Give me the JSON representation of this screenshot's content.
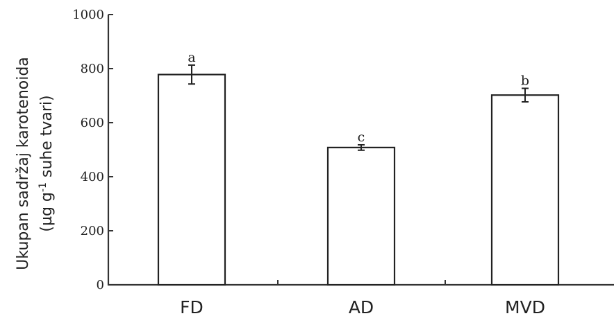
{
  "chart_data": {
    "type": "bar",
    "categories": [
      "FD",
      "AD",
      "MVD"
    ],
    "values": [
      778,
      508,
      702
    ],
    "errors": [
      35,
      10,
      25
    ],
    "significance_letters": [
      "a",
      "c",
      "b"
    ],
    "ylabel_line1": "Ukupan sadržaj karotenoida",
    "ylabel_line2_prefix": "(µg g",
    "ylabel_superscript": "-1",
    "ylabel_line2_suffix": " suhe tvari)",
    "ylim": [
      0,
      1000
    ],
    "yticks": [
      "0",
      "200",
      "400",
      "600",
      "800",
      "1000"
    ],
    "grid": false
  }
}
